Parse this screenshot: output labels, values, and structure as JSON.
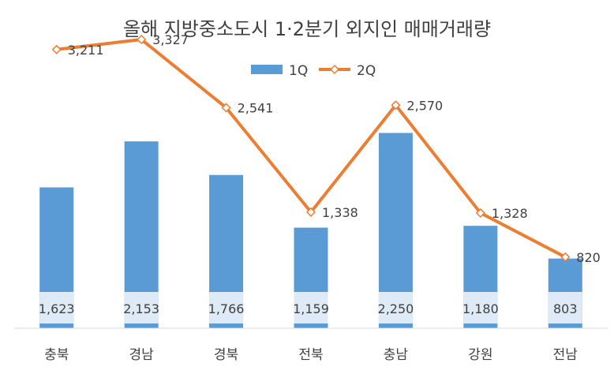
{
  "chart_data": {
    "type": "bar",
    "title": "올해 지방중소도시 1·2분기 외지인 매매거래량",
    "categories": [
      "충북",
      "경남",
      "경북",
      "전북",
      "충남",
      "강원",
      "전남"
    ],
    "series": [
      {
        "name": "1Q",
        "type": "bar",
        "color": "#5b9bd5",
        "values": [
          1623,
          2153,
          1766,
          1159,
          2250,
          1180,
          803
        ],
        "labels": [
          "1,623",
          "2,153",
          "1,766",
          "1,159",
          "2,250",
          "1,180",
          "803"
        ]
      },
      {
        "name": "2Q",
        "type": "line",
        "color": "#ed7d31",
        "values": [
          3211,
          3327,
          2541,
          1338,
          2570,
          1328,
          820
        ],
        "labels": [
          "3,211",
          "3,327",
          "2,541",
          "1,338",
          "2,570",
          "1,328",
          "820"
        ]
      }
    ],
    "legend": "top-center",
    "grid": false,
    "ylim": [
      0,
      4200
    ]
  }
}
